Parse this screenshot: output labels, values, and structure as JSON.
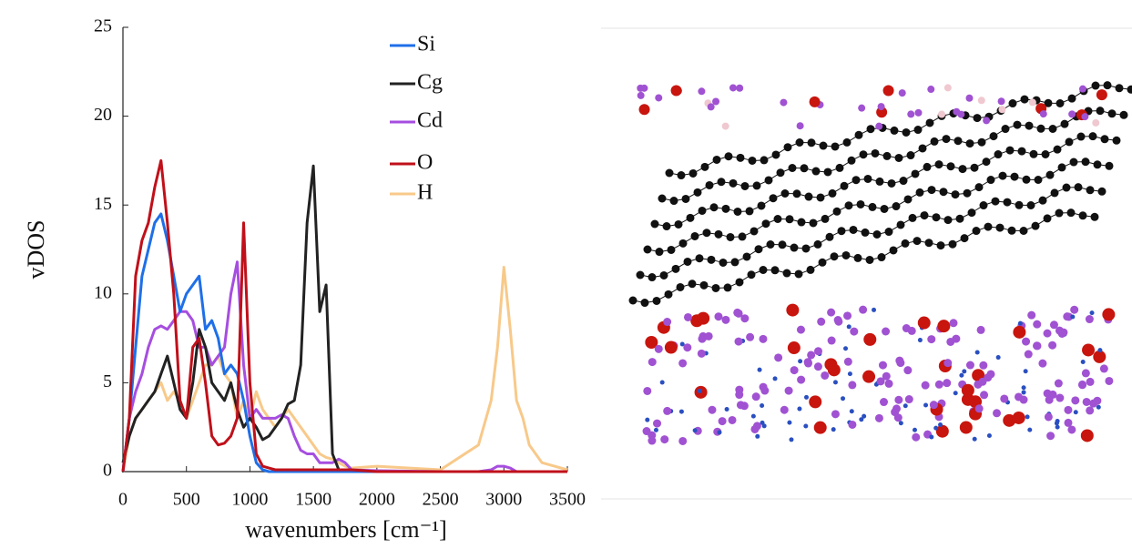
{
  "chart_data": {
    "type": "line",
    "xlabel": "wavenumbers [cm⁻¹]",
    "ylabel": "vDOS",
    "x": [
      0,
      50,
      100,
      150,
      200,
      250,
      300,
      350,
      400,
      450,
      500,
      550,
      600,
      650,
      700,
      750,
      800,
      850,
      900,
      950,
      1000,
      1050,
      1100,
      1150,
      1200,
      1250,
      1300,
      1350,
      1400,
      1450,
      1500,
      1550,
      1600,
      1650,
      1700,
      1750,
      1800,
      2000,
      2500,
      2800,
      2900,
      2950,
      3000,
      3050,
      3100,
      3150,
      3200,
      3300,
      3500
    ],
    "xlim": [
      0,
      3500
    ],
    "xticks": [
      0,
      500,
      1000,
      1500,
      2000,
      2500,
      3000,
      3500
    ],
    "ylim": [
      0,
      25
    ],
    "yticks": [
      0,
      5,
      10,
      15,
      20,
      25
    ],
    "series": [
      {
        "name": "Si",
        "color": "#1f6fe8",
        "values": [
          0,
          3,
          7,
          11,
          12.5,
          14,
          14.5,
          13,
          11,
          9,
          10,
          10.5,
          11,
          8,
          8.5,
          7.5,
          5.5,
          6,
          5.5,
          4,
          2,
          0.5,
          0.1,
          0,
          0,
          0,
          0,
          0,
          0,
          0,
          0,
          0,
          0,
          0,
          0,
          0,
          0,
          0,
          0,
          0,
          0,
          0,
          0,
          0,
          0,
          0,
          0,
          0,
          0
        ]
      },
      {
        "name": "Cg",
        "color": "#222222",
        "values": [
          0.5,
          2,
          3,
          3.5,
          4,
          4.5,
          5.5,
          6.5,
          5,
          3.5,
          3,
          5,
          8,
          7,
          5,
          4.5,
          4,
          5,
          3.5,
          2.5,
          3,
          2.5,
          1.8,
          2,
          2.5,
          3,
          3.8,
          4,
          6,
          14,
          17.2,
          9,
          10.5,
          1,
          0.1,
          0,
          0,
          0,
          0,
          0,
          0,
          0,
          0,
          0,
          0,
          0,
          0,
          0,
          0
        ]
      },
      {
        "name": "Cd",
        "color": "#a64ee0",
        "values": [
          0,
          3,
          4.5,
          5.5,
          7,
          8,
          8.2,
          8,
          8.5,
          9,
          9,
          8.5,
          7,
          7,
          6,
          6.5,
          7,
          10,
          11.8,
          6,
          3,
          3.5,
          3,
          3,
          3,
          3.2,
          3,
          2,
          1.2,
          1,
          1,
          0.5,
          0.5,
          0.5,
          0.7,
          0.5,
          0.1,
          0.05,
          0,
          0,
          0.1,
          0.3,
          0.3,
          0.2,
          0,
          0,
          0,
          0,
          0
        ]
      },
      {
        "name": "O",
        "color": "#c0101a",
        "values": [
          0,
          3,
          11,
          13,
          14,
          16,
          17.5,
          14,
          10,
          4,
          3,
          7,
          7.5,
          5,
          2,
          1.5,
          1.6,
          2,
          3,
          14,
          5,
          1,
          0.3,
          0.2,
          0.1,
          0.1,
          0.1,
          0.1,
          0.1,
          0.1,
          0.1,
          0.1,
          0.1,
          0.1,
          0.1,
          0.1,
          0.1,
          0,
          0,
          0,
          0,
          0,
          0,
          0,
          0,
          0,
          0,
          0,
          0
        ]
      },
      {
        "name": "H",
        "color": "#f8c98a",
        "values": [
          0,
          2,
          3,
          3.5,
          4,
          4.5,
          5,
          4,
          4.5,
          4,
          3,
          4,
          5,
          6,
          6,
          6.5,
          5.5,
          5,
          3,
          4,
          3,
          4.5,
          3.5,
          3,
          2.5,
          3,
          3.5,
          3,
          2.5,
          2,
          1.5,
          1,
          0.8,
          0.7,
          0.5,
          0.3,
          0.2,
          0.3,
          0.1,
          1.5,
          4,
          7,
          11.5,
          8,
          4,
          3,
          1.5,
          0.5,
          0.1
        ]
      }
    ]
  }
}
